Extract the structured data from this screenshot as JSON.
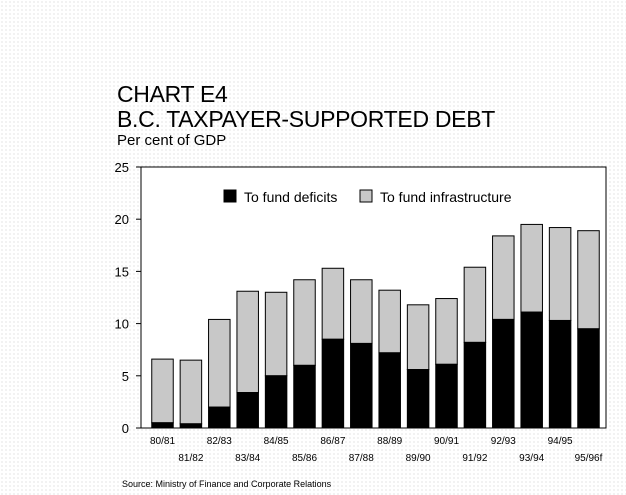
{
  "title_line1": "CHART E4",
  "title_line2": "B.C. TAXPAYER-SUPPORTED DEBT",
  "subtitle": "Per cent of GDP",
  "source": "Source: Ministry of Finance and Corporate Relations",
  "colors": {
    "deficits": "#000000",
    "infrastructure": "#c8c8c8",
    "plot_background": "#ffffff"
  },
  "chart_data": {
    "type": "bar",
    "stacked": true,
    "categories": [
      "80/81",
      "81/82",
      "82/83",
      "83/84",
      "84/85",
      "85/86",
      "86/87",
      "87/88",
      "88/89",
      "89/90",
      "90/91",
      "91/92",
      "92/93",
      "93/94",
      "94/95",
      "95/96f"
    ],
    "series": [
      {
        "name": "To fund deficits",
        "values": [
          0.5,
          0.4,
          2.0,
          3.4,
          5.0,
          6.0,
          8.5,
          8.1,
          7.2,
          5.6,
          6.1,
          8.2,
          10.4,
          11.1,
          10.3,
          9.5
        ]
      },
      {
        "name": "To fund infrastructure",
        "values": [
          6.1,
          6.1,
          8.4,
          9.7,
          8.0,
          8.2,
          6.8,
          6.1,
          6.0,
          6.2,
          6.3,
          7.2,
          8.0,
          8.4,
          8.9,
          9.4
        ]
      }
    ],
    "y_ticks": [
      "0",
      "5",
      "10",
      "15",
      "20",
      "25"
    ],
    "ylim": [
      0,
      25
    ],
    "legend": "top-center, inside plot",
    "grid": false
  }
}
